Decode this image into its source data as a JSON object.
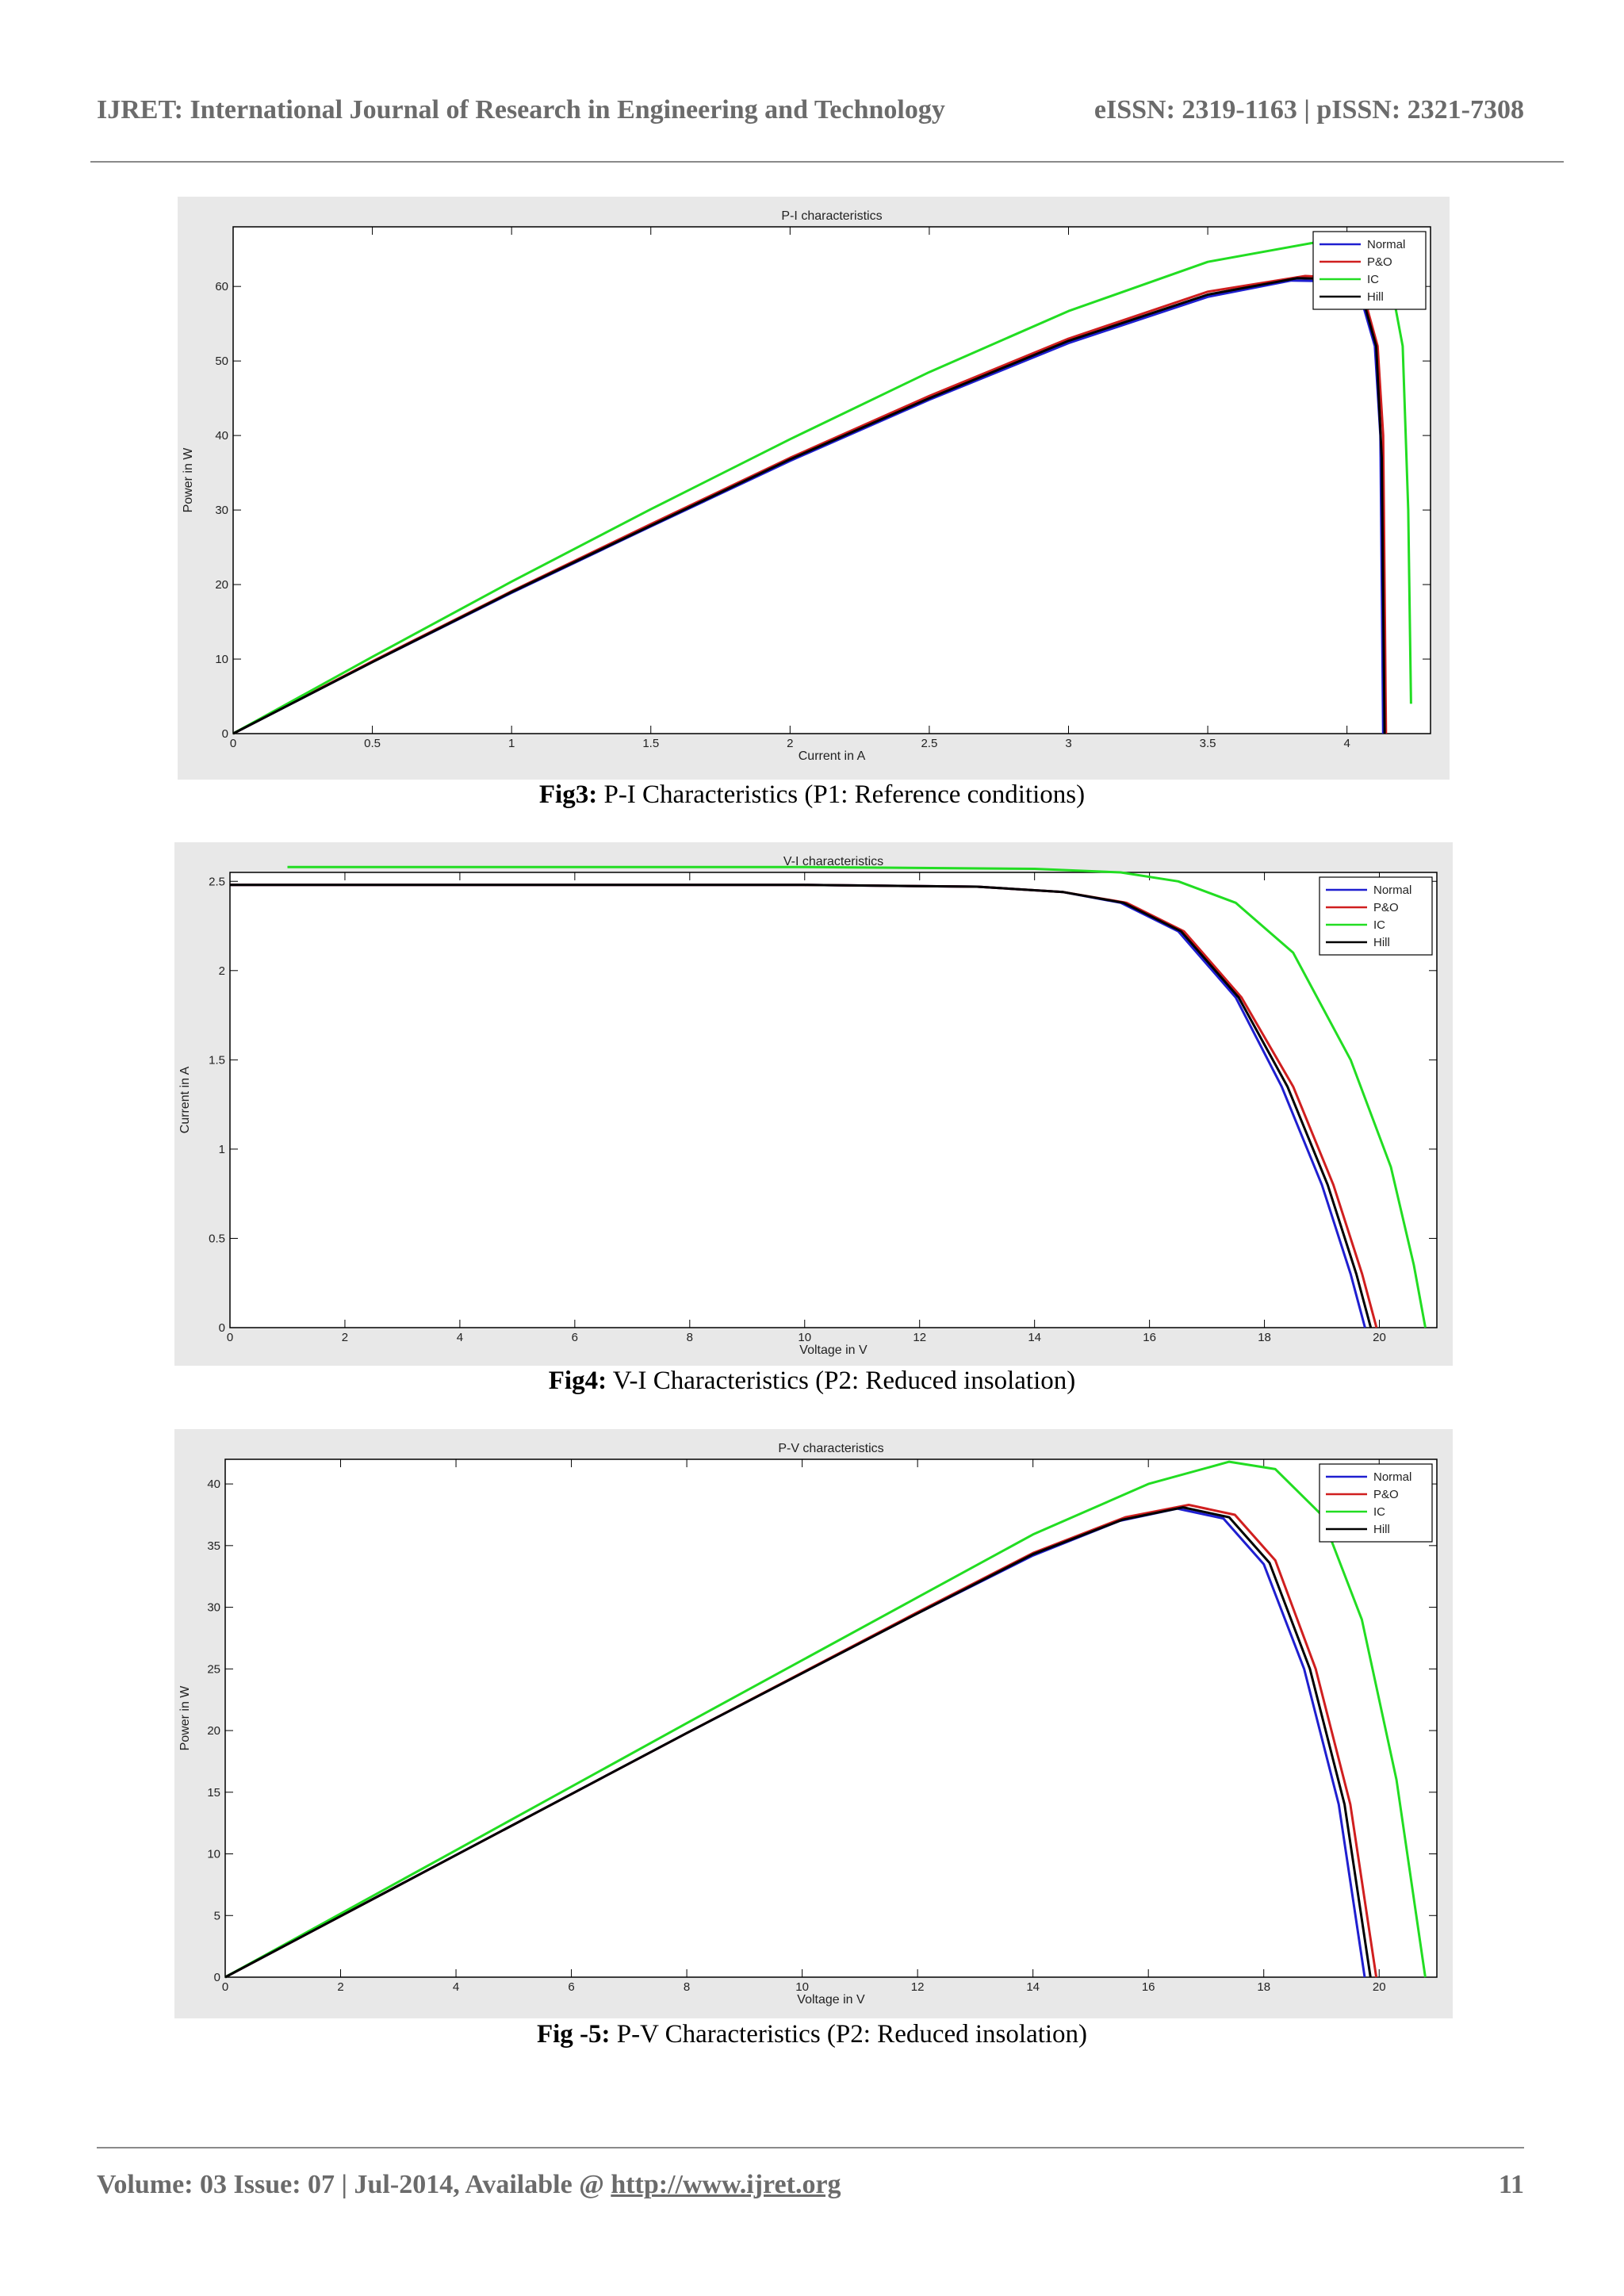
{
  "header": {
    "journal": "IJRET: International Journal of Research in Engineering and Technology",
    "issn": "eISSN: 2319-1163 | pISSN: 2321-7308"
  },
  "figures": [
    {
      "label": "Fig3:",
      "text": " P-I Characteristics (P1: Reference conditions)"
    },
    {
      "label": "Fig4:",
      "text": " V-I Characteristics (P2: Reduced insolation)"
    },
    {
      "label": "Fig -5:",
      "text": " P-V Characteristics (P2: Reduced insolation)"
    }
  ],
  "footer": {
    "volume": "Volume: 03 Issue: 07 | Jul-2014, Available @ ",
    "url": "http://www.ijret.org",
    "page": "11"
  },
  "colors": {
    "Normal": "#1f1fd0",
    "P&O": "#d01f1f",
    "IC": "#22dd22",
    "Hill": "#000000"
  },
  "chart_data": [
    {
      "type": "line",
      "title": "P-I characteristics",
      "xlabel": "Current in A",
      "ylabel": "Power in W",
      "xlim": [
        0,
        4.3
      ],
      "ylim": [
        0,
        68
      ],
      "xticks": [
        "0",
        "0.5",
        "1",
        "1.5",
        "2",
        "2.5",
        "3",
        "3.5",
        "4"
      ],
      "yticks": [
        "0",
        "10",
        "20",
        "30",
        "40",
        "50",
        "60"
      ],
      "legend": [
        "Normal",
        "P&O",
        "IC",
        "Hill"
      ],
      "legend_position": "top-right",
      "series": [
        {
          "name": "Normal",
          "x": [
            0,
            0.5,
            1,
            1.5,
            2,
            2.5,
            3,
            3.5,
            3.8,
            3.95,
            4.05,
            4.1,
            4.12,
            4.13
          ],
          "y": [
            0,
            9.6,
            18.9,
            27.8,
            36.6,
            44.8,
            52.4,
            58.6,
            60.8,
            60.7,
            58.5,
            52,
            40,
            0
          ]
        },
        {
          "name": "P&O",
          "x": [
            0,
            0.5,
            1,
            1.5,
            2,
            2.5,
            3,
            3.5,
            3.85,
            3.97,
            4.06,
            4.11,
            4.13,
            4.14
          ],
          "y": [
            0,
            9.7,
            19.1,
            28.1,
            37.0,
            45.3,
            53.0,
            59.3,
            61.4,
            61.2,
            58.8,
            52,
            40,
            0
          ]
        },
        {
          "name": "IC",
          "x": [
            0,
            0.5,
            1,
            1.5,
            2,
            2.5,
            3,
            3.5,
            3.9,
            4.05,
            4.15,
            4.2,
            4.22,
            4.23
          ],
          "y": [
            0,
            10.3,
            20.4,
            30.1,
            39.5,
            48.5,
            56.7,
            63.3,
            66.0,
            65.8,
            62,
            52,
            30,
            4
          ]
        },
        {
          "name": "Hill",
          "x": [
            0,
            0.5,
            1,
            1.5,
            2,
            2.5,
            3,
            3.5,
            3.82,
            3.96,
            4.055,
            4.105,
            4.125,
            4.135
          ],
          "y": [
            0,
            9.6,
            19.0,
            27.9,
            36.8,
            45.0,
            52.7,
            58.9,
            61.1,
            61.0,
            58.6,
            52,
            37,
            0
          ]
        }
      ]
    },
    {
      "type": "line",
      "title": "V-I characteristics",
      "xlabel": "Voltage in V",
      "ylabel": "Current in A",
      "xlim": [
        0,
        21
      ],
      "ylim": [
        0,
        2.55
      ],
      "xticks": [
        "0",
        "2",
        "4",
        "6",
        "8",
        "10",
        "12",
        "14",
        "16",
        "18",
        "20"
      ],
      "yticks": [
        "0",
        "0.5",
        "1",
        "1.5",
        "2",
        "2.5"
      ],
      "legend": [
        "Normal",
        "P&O",
        "IC",
        "Hill"
      ],
      "legend_position": "top-right",
      "series": [
        {
          "name": "Normal",
          "x": [
            0,
            10,
            13,
            14.5,
            15.5,
            16.5,
            17.5,
            18.3,
            19,
            19.5,
            19.75
          ],
          "y": [
            2.48,
            2.48,
            2.47,
            2.44,
            2.38,
            2.22,
            1.85,
            1.35,
            0.8,
            0.3,
            0
          ]
        },
        {
          "name": "P&O",
          "x": [
            0,
            10,
            13,
            14.5,
            15.6,
            16.6,
            17.6,
            18.5,
            19.2,
            19.7,
            19.95
          ],
          "y": [
            2.48,
            2.48,
            2.47,
            2.44,
            2.38,
            2.22,
            1.85,
            1.35,
            0.8,
            0.3,
            0
          ]
        },
        {
          "name": "IC",
          "x": [
            1,
            10,
            14,
            15.5,
            16.5,
            17.5,
            18.5,
            19.5,
            20.2,
            20.6,
            20.8
          ],
          "y": [
            2.58,
            2.58,
            2.57,
            2.55,
            2.5,
            2.38,
            2.1,
            1.5,
            0.9,
            0.35,
            0
          ]
        },
        {
          "name": "Hill",
          "x": [
            0,
            10,
            13,
            14.5,
            15.55,
            16.55,
            17.55,
            18.4,
            19.1,
            19.6,
            19.85
          ],
          "y": [
            2.48,
            2.48,
            2.47,
            2.44,
            2.38,
            2.22,
            1.85,
            1.35,
            0.8,
            0.3,
            0
          ]
        }
      ]
    },
    {
      "type": "line",
      "title": "P-V characteristics",
      "xlabel": "Voltage in V",
      "ylabel": "Power in W",
      "xlim": [
        0,
        21
      ],
      "ylim": [
        0,
        42
      ],
      "xticks": [
        "0",
        "2",
        "4",
        "6",
        "8",
        "10",
        "12",
        "14",
        "16",
        "18",
        "20"
      ],
      "yticks": [
        "0",
        "5",
        "10",
        "15",
        "20",
        "25",
        "30",
        "35",
        "40"
      ],
      "legend": [
        "Normal",
        "P&O",
        "IC",
        "Hill"
      ],
      "legend_position": "top-right",
      "series": [
        {
          "name": "Normal",
          "x": [
            0,
            4,
            8,
            12,
            14,
            15.5,
            16.5,
            17.3,
            18,
            18.7,
            19.3,
            19.75
          ],
          "y": [
            0,
            9.9,
            19.8,
            29.5,
            34.2,
            37.0,
            38.0,
            37.2,
            33.5,
            25,
            14,
            0
          ]
        },
        {
          "name": "P&O",
          "x": [
            0,
            4,
            8,
            12,
            14,
            15.6,
            16.7,
            17.5,
            18.2,
            18.9,
            19.5,
            19.95
          ],
          "y": [
            0,
            9.9,
            19.8,
            29.6,
            34.4,
            37.3,
            38.3,
            37.5,
            33.8,
            25,
            14,
            0
          ]
        },
        {
          "name": "IC",
          "x": [
            0,
            4,
            8,
            12,
            14,
            16,
            17.4,
            18.2,
            19,
            19.7,
            20.3,
            20.8
          ],
          "y": [
            0,
            10.3,
            20.6,
            30.8,
            35.9,
            40.0,
            41.8,
            41.2,
            37.5,
            29,
            16,
            0
          ]
        },
        {
          "name": "Hill",
          "x": [
            0,
            4,
            8,
            12,
            14,
            15.55,
            16.6,
            17.4,
            18.1,
            18.8,
            19.4,
            19.85
          ],
          "y": [
            0,
            9.9,
            19.8,
            29.5,
            34.3,
            37.1,
            38.1,
            37.3,
            33.6,
            25,
            14,
            0
          ]
        }
      ]
    }
  ]
}
